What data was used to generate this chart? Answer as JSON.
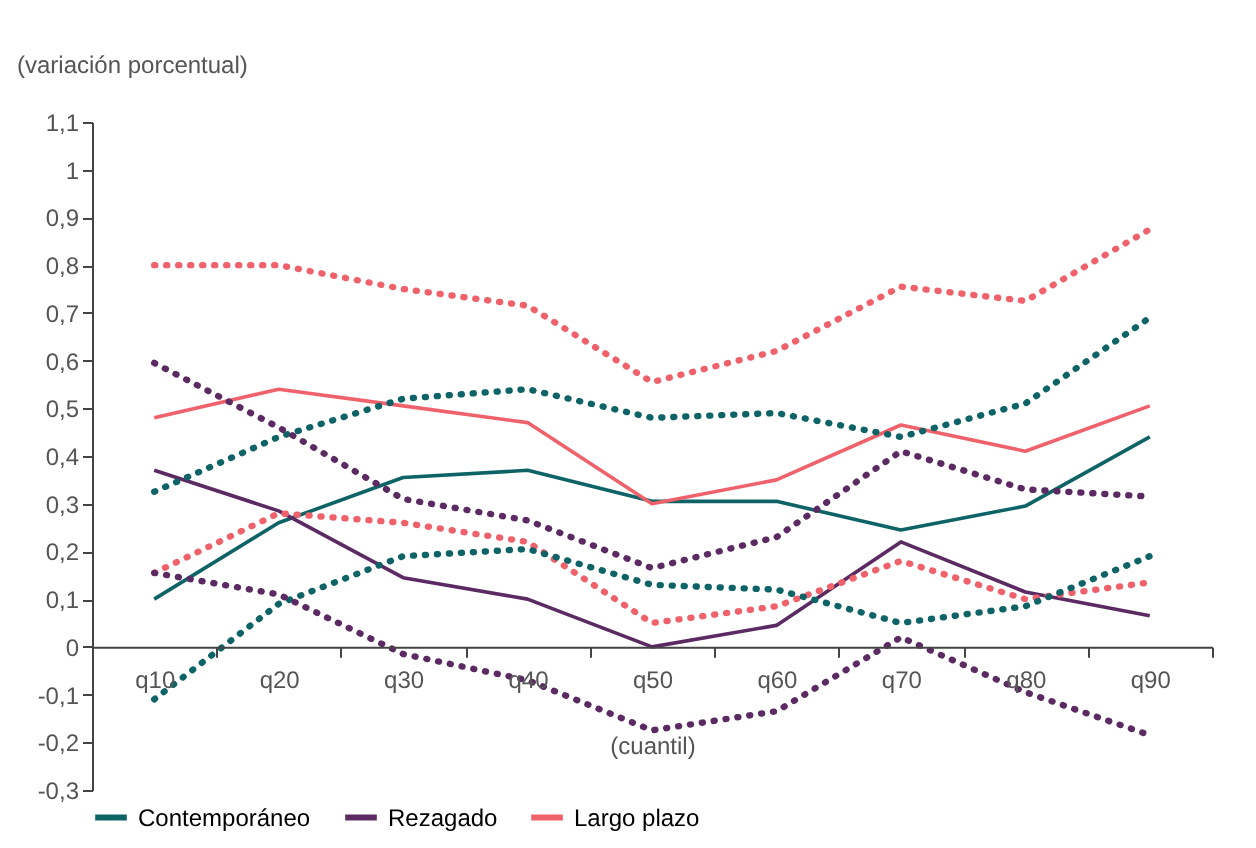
{
  "chart_data": {
    "type": "line",
    "xlabel": "(cuantil)",
    "ylabel": "(variación porcentual)",
    "categories": [
      "q10",
      "q20",
      "q30",
      "q40",
      "q50",
      "q60",
      "q70",
      "q80",
      "q90"
    ],
    "series": [
      {
        "name": "Contemporáneo",
        "color": "#0e6366",
        "line_style": "solid",
        "values": [
          0.1,
          0.26,
          0.355,
          0.37,
          0.305,
          0.305,
          0.245,
          0.295,
          0.44
        ]
      },
      {
        "name": "Rezagado",
        "color": "#5c2a63",
        "line_style": "solid",
        "values": [
          0.37,
          0.285,
          0.145,
          0.1,
          0.0,
          0.045,
          0.22,
          0.115,
          0.065
        ]
      },
      {
        "name": "Largo plazo",
        "color": "#f0626b",
        "line_style": "solid",
        "values": [
          0.48,
          0.54,
          0.505,
          0.47,
          0.3,
          0.35,
          0.465,
          0.41,
          0.505
        ]
      },
      {
        "color": "#f0626b",
        "line_style": "dotted",
        "values": [
          0.8,
          0.8,
          0.75,
          0.715,
          0.555,
          0.62,
          0.755,
          0.725,
          0.875
        ]
      },
      {
        "color": "#f0626b",
        "line_style": "dotted",
        "values": [
          0.155,
          0.28,
          0.26,
          0.22,
          0.05,
          0.085,
          0.18,
          0.1,
          0.135
        ]
      },
      {
        "color": "#0e6366",
        "line_style": "dotted",
        "values": [
          0.325,
          0.44,
          0.52,
          0.54,
          0.48,
          0.49,
          0.44,
          0.51,
          0.69
        ]
      },
      {
        "color": "#0e6366",
        "line_style": "dotted",
        "values": [
          -0.11,
          0.09,
          0.19,
          0.205,
          0.13,
          0.12,
          0.05,
          0.085,
          0.19
        ]
      },
      {
        "color": "#5c2a63",
        "line_style": "dotted",
        "values": [
          0.595,
          0.46,
          0.31,
          0.265,
          0.165,
          0.23,
          0.41,
          0.33,
          0.315
        ]
      },
      {
        "color": "#5c2a63",
        "line_style": "dotted",
        "values": [
          0.155,
          0.11,
          -0.015,
          -0.07,
          -0.175,
          -0.135,
          0.02,
          -0.095,
          -0.185
        ]
      }
    ],
    "ylim": [
      -0.3,
      1.1
    ],
    "yticks": [
      {
        "value": 1.1,
        "label": "1,1"
      },
      1,
      {
        "value": 0.9,
        "label": "0,9"
      },
      {
        "value": 0.8,
        "label": "0,8"
      },
      {
        "value": 0.7,
        "label": "0,7"
      },
      {
        "value": 0.6,
        "label": "0,6"
      },
      {
        "value": 0.5,
        "label": "0,5"
      },
      {
        "value": 0.4,
        "label": "0,4"
      },
      {
        "value": 0.3,
        "label": "0,3"
      },
      {
        "value": 0.2,
        "label": "0,2"
      },
      {
        "value": 0.1,
        "label": "0,1"
      },
      0,
      {
        "value": -0.1,
        "label": "-0,1"
      },
      {
        "value": -0.2,
        "label": "-0,2"
      },
      {
        "value": -0.3,
        "label": "-0,3"
      }
    ],
    "grid": false,
    "legend": "bottom",
    "marker": "none"
  }
}
